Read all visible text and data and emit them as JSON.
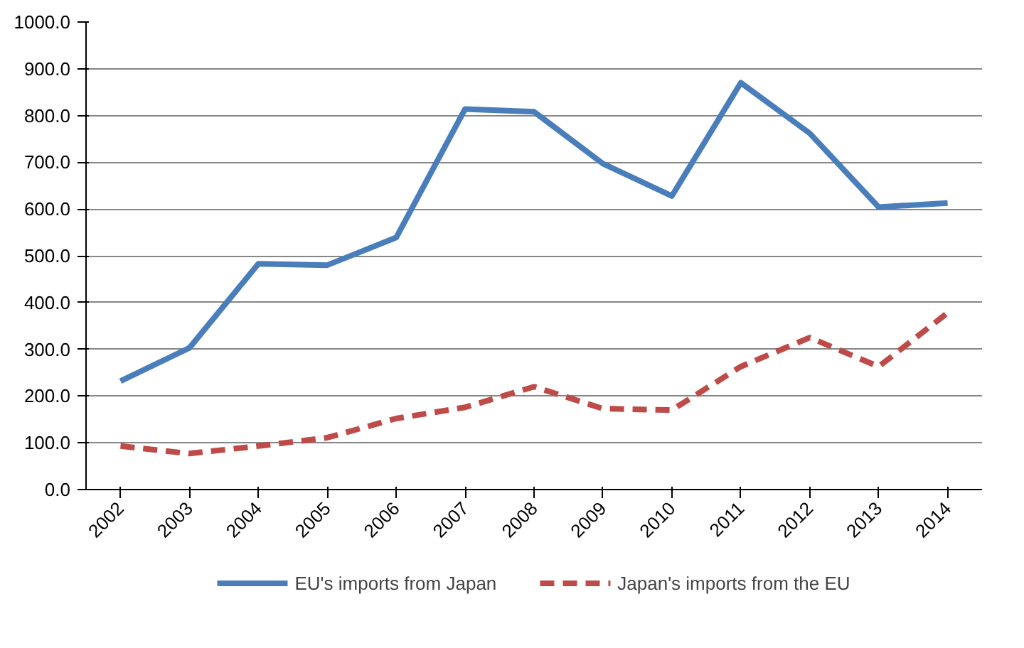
{
  "chart_data": {
    "type": "line",
    "categories": [
      "2002",
      "2003",
      "2004",
      "2005",
      "2006",
      "2007",
      "2008",
      "2009",
      "2010",
      "2011",
      "2012",
      "2013",
      "2014"
    ],
    "series": [
      {
        "name": "EU's imports from Japan",
        "color": "#4a7ebb",
        "line_style": "solid",
        "values": [
          232,
          303,
          483,
          480,
          539,
          814,
          808,
          697,
          628,
          870,
          762,
          604,
          613
        ]
      },
      {
        "name": "Japan's imports from the EU",
        "color": "#be4b48",
        "line_style": "dashed",
        "values": [
          93,
          77,
          93,
          111,
          152,
          176,
          220,
          173,
          170,
          263,
          325,
          263,
          378
        ]
      }
    ],
    "ylim": [
      0,
      1000
    ],
    "yticks": [
      {
        "value": 0,
        "label": "0.0"
      },
      {
        "value": 100,
        "label": "100.0"
      },
      {
        "value": 200,
        "label": "200.0"
      },
      {
        "value": 300,
        "label": "300.0"
      },
      {
        "value": 400,
        "label": "400.0"
      },
      {
        "value": 500,
        "label": "500.0"
      },
      {
        "value": 600,
        "label": "600.0"
      },
      {
        "value": 700,
        "label": "700.0"
      },
      {
        "value": 800,
        "label": "800.0"
      },
      {
        "value": 900,
        "label": "900.0"
      },
      {
        "value": 1000,
        "label": "1000.0"
      }
    ],
    "grid": "y",
    "legend": "bottom",
    "marker": "none"
  }
}
